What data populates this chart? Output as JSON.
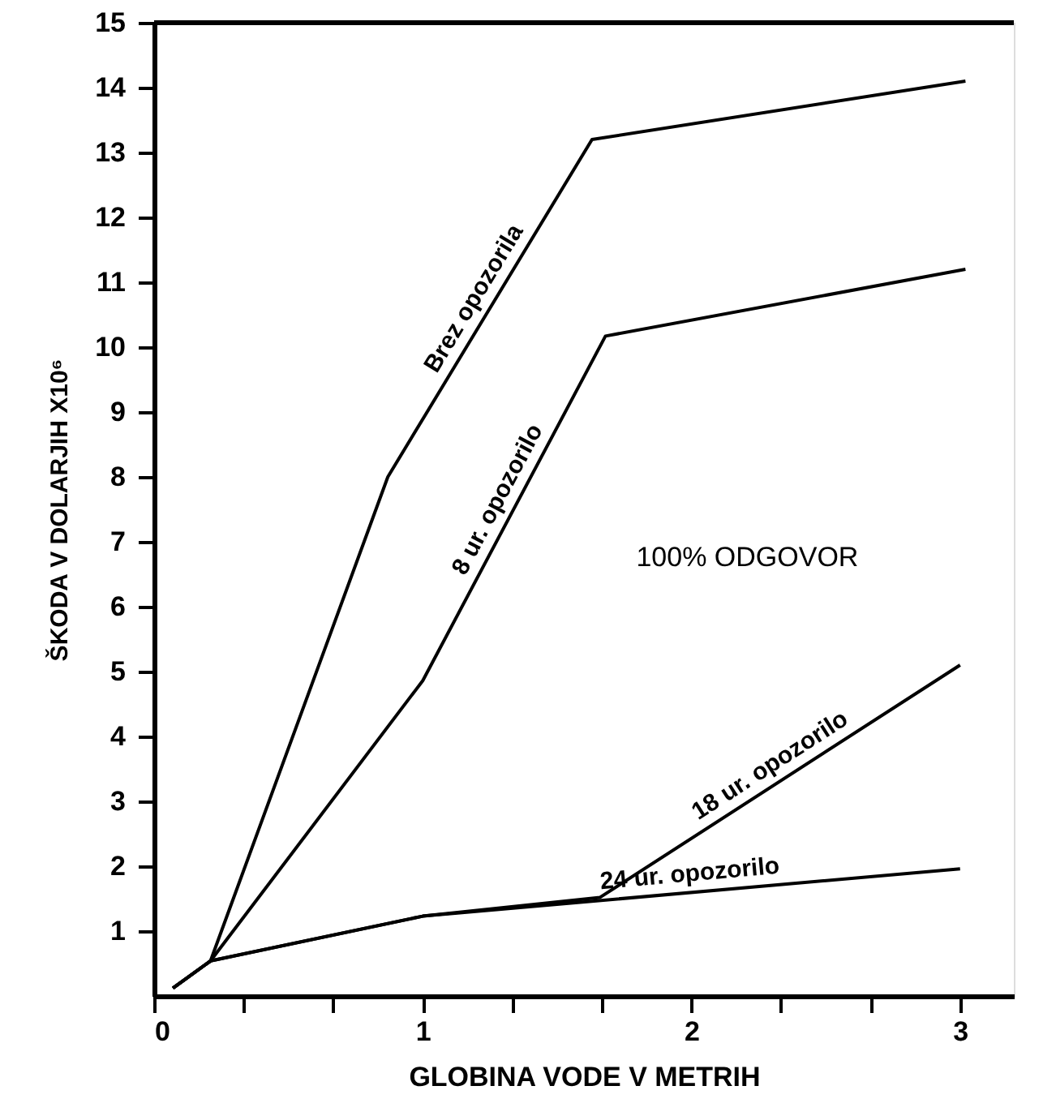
{
  "chart_data": {
    "type": "line",
    "xlabel": "GLOBINA VODE V METRIH",
    "ylabel": "ŠKODA V DOLARJIH X10⁶",
    "series": [
      {
        "name": "Brez opozorila",
        "color": "#000000",
        "x": [
          0.07,
          0.21,
          0.87,
          1.63,
          3.02
        ],
        "values": [
          0.12,
          0.54,
          8.0,
          13.2,
          14.1
        ]
      },
      {
        "name": "8 ur. opozorilo",
        "color": "#000000",
        "x": [
          0.07,
          0.21,
          1.0,
          1.68,
          3.02
        ],
        "values": [
          0.12,
          0.54,
          4.86,
          10.17,
          11.2
        ]
      },
      {
        "name": "18 ur. opozorilo",
        "color": "#000000",
        "x": [
          0.07,
          0.21,
          1.0,
          1.66,
          3.0
        ],
        "values": [
          0.12,
          0.54,
          1.23,
          1.52,
          5.1
        ]
      },
      {
        "name": "24 ur. opozorilo",
        "color": "#000000",
        "x": [
          0.07,
          0.21,
          1.0,
          3.0
        ],
        "values": [
          0.12,
          0.54,
          1.23,
          1.96
        ]
      }
    ],
    "annotations": [
      "100% ODGOVOR"
    ],
    "xlim": [
      0,
      3.2
    ],
    "xticks": [
      0,
      {
        "value": 0.333,
        "label": null
      },
      {
        "value": 0.667,
        "label": null
      },
      1,
      {
        "value": 1.333,
        "label": null
      },
      {
        "value": 1.667,
        "label": null
      },
      2,
      {
        "value": 2.333,
        "label": null
      },
      {
        "value": 2.667,
        "label": null
      },
      3
    ],
    "ylim": [
      0,
      15
    ],
    "yticks": [
      1,
      2,
      3,
      4,
      5,
      6,
      7,
      8,
      9,
      10,
      11,
      12,
      13,
      14,
      15
    ],
    "grid": false,
    "marker": "none",
    "line_style": "solid"
  }
}
